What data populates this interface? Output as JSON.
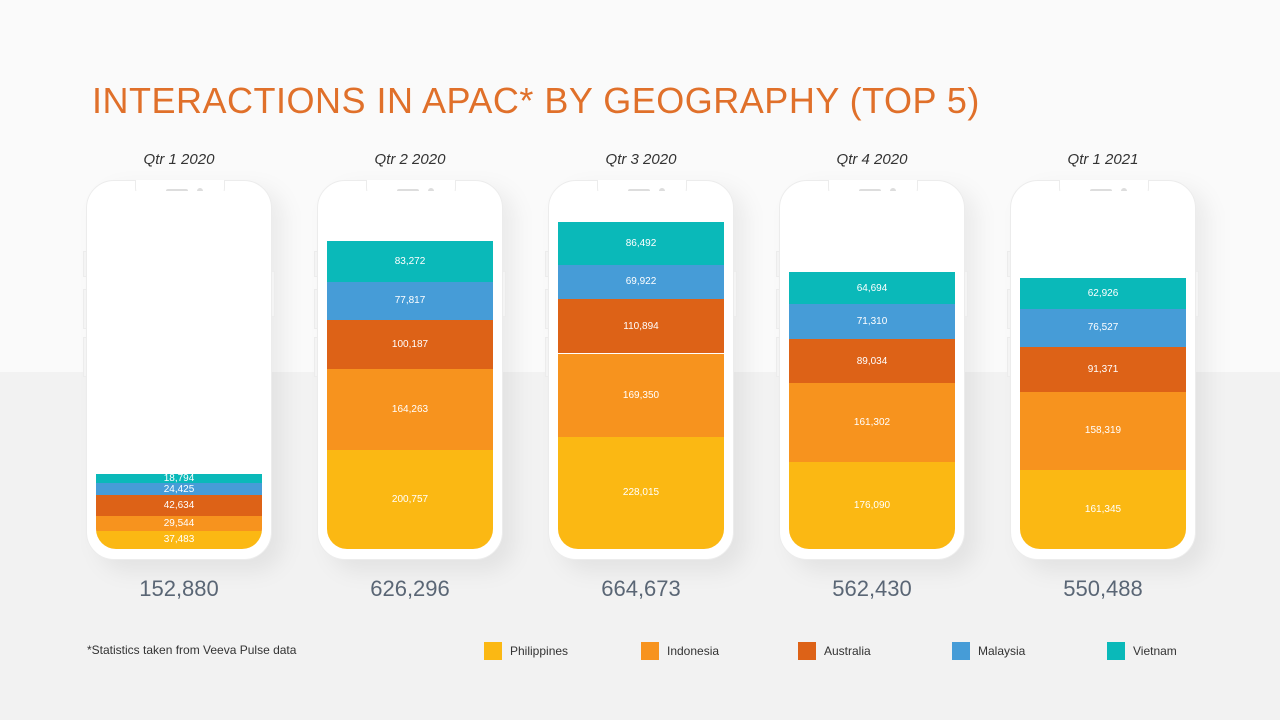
{
  "title": "INTERACTIONS IN APAC* BY GEOGRAPHY (TOP 5)",
  "footnote": "*Statistics taken from Veeva Pulse data",
  "colors": {
    "Philippines": "#fbb813",
    "Indonesia": "#f7931e",
    "Australia": "#dd6217",
    "Malaysia": "#469cd7",
    "Vietnam": "#0ab9b9"
  },
  "chart_data": {
    "type": "bar",
    "stacked": true,
    "title": "INTERACTIONS IN APAC* BY GEOGRAPHY (TOP 5)",
    "categories": [
      "Qtr 1 2020",
      "Qtr 2 2020",
      "Qtr 3 2020",
      "Qtr 4 2020",
      "Qtr 1 2021"
    ],
    "series": [
      {
        "name": "Philippines",
        "values": [
          37483,
          200757,
          228015,
          176090,
          161345
        ],
        "labels": [
          "37,483",
          "200,757",
          "228,015",
          "176,090",
          "161,345"
        ]
      },
      {
        "name": "Indonesia",
        "values": [
          29544,
          164263,
          169350,
          161302,
          158319
        ],
        "labels": [
          "29,544",
          "164,263",
          "169,350",
          "161,302",
          "158,319"
        ]
      },
      {
        "name": "Australia",
        "values": [
          42634,
          100187,
          110894,
          89034,
          91371
        ],
        "labels": [
          "42,634",
          "100,187",
          "110,894",
          "89,034",
          "91,371"
        ]
      },
      {
        "name": "Malaysia",
        "values": [
          24425,
          77817,
          69922,
          71310,
          76527
        ],
        "labels": [
          "24,425",
          "77,817",
          "69,922",
          "71,310",
          "76,527"
        ]
      },
      {
        "name": "Vietnam",
        "values": [
          18794,
          83272,
          86492,
          64694,
          62926
        ],
        "labels": [
          "18,794",
          "83,272",
          "86,492",
          "64,694",
          "62,926"
        ]
      }
    ],
    "totals": [
      "152,880",
      "626,296",
      "664,673",
      "562,430",
      "550,488"
    ],
    "ylim": [
      0,
      664673
    ],
    "legend": [
      "Philippines",
      "Indonesia",
      "Australia",
      "Malaysia",
      "Vietnam"
    ],
    "legend_position": "bottom-right"
  }
}
